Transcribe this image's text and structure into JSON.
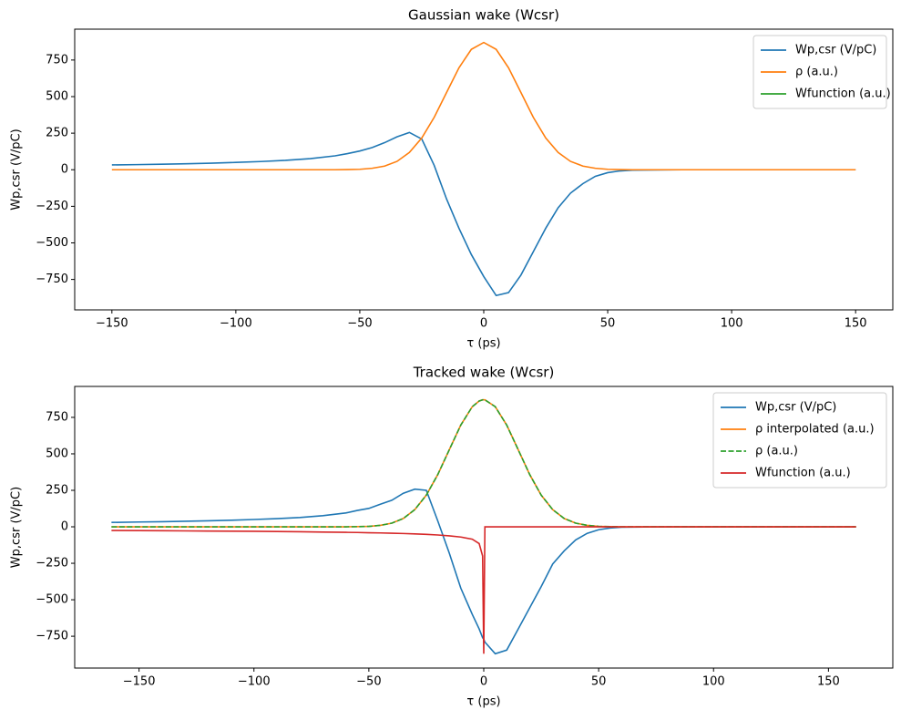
{
  "chart_data": [
    {
      "type": "line",
      "title": "Gaussian wake (Wcsr)",
      "xlabel": "τ (ps)",
      "ylabel": "Wp,csr (V/pC)",
      "x": [
        -150,
        -140,
        -130,
        -120,
        -110,
        -100,
        -90,
        -80,
        -70,
        -60,
        -55,
        -50,
        -45,
        -40,
        -35,
        -30,
        -25,
        -20,
        -15,
        -10,
        -5,
        0,
        5,
        10,
        15,
        20,
        25,
        30,
        35,
        40,
        45,
        50,
        55,
        60,
        70,
        80,
        90,
        100,
        110,
        120,
        130,
        140,
        150
      ],
      "series": [
        {
          "name": "Wp,csr (V/pC)",
          "color": "#1f77b4",
          "values": [
            33,
            35,
            38,
            41,
            45,
            50,
            56,
            64,
            76,
            95,
            110,
            128,
            152,
            185,
            225,
            255,
            210,
            30,
            -200,
            -400,
            -580,
            -730,
            -860,
            -840,
            -720,
            -560,
            -400,
            -260,
            -160,
            -95,
            -45,
            -20,
            -8,
            -3,
            -1,
            0,
            0,
            0,
            0,
            0,
            0,
            0,
            0
          ]
        },
        {
          "name": "ρ (a.u.)",
          "color": "#ff7f0e",
          "values": [
            0,
            0,
            0,
            0,
            0,
            0,
            0,
            0,
            0,
            0,
            1,
            3,
            10,
            25,
            57,
            118,
            217,
            358,
            528,
            697,
            823,
            870,
            823,
            697,
            528,
            358,
            217,
            118,
            57,
            25,
            10,
            3,
            1,
            0,
            0,
            0,
            0,
            0,
            0,
            0,
            0,
            0,
            0
          ]
        },
        {
          "name": "Wfunction (a.u.)",
          "color": "#2ca02c",
          "values": [
            null,
            null,
            null,
            null,
            null,
            null,
            null,
            null,
            null,
            null,
            null,
            null,
            null,
            null,
            null,
            null,
            null,
            null,
            null,
            null,
            null,
            null,
            null,
            null,
            null,
            null,
            null,
            null,
            null,
            null,
            null,
            null,
            null,
            null,
            null,
            null,
            null,
            null,
            null,
            null,
            null,
            null,
            null
          ]
        }
      ],
      "xlim": [
        -165,
        165
      ],
      "ylim": [
        -958,
        961
      ],
      "xticks": [
        {
          "value": -150,
          "label": "−150"
        },
        {
          "value": -100,
          "label": "−100"
        },
        {
          "value": -50,
          "label": "−50"
        },
        0,
        50,
        100,
        150
      ],
      "yticks": [
        {
          "value": -750,
          "label": "−750"
        },
        {
          "value": -500,
          "label": "−500"
        },
        {
          "value": -250,
          "label": "−250"
        },
        0,
        250,
        500,
        750
      ],
      "legend": "upper right"
    },
    {
      "type": "line",
      "title": "Tracked wake (Wcsr)",
      "xlabel": "τ (ps)",
      "ylabel": "Wp,csr (V/pC)",
      "x": [
        -162,
        -150,
        -140,
        -130,
        -120,
        -110,
        -100,
        -90,
        -80,
        -70,
        -60,
        -55,
        -50,
        -45,
        -40,
        -35,
        -30,
        -25,
        -20,
        -15,
        -10,
        -5,
        -2,
        -0.5,
        0,
        0.5,
        5,
        10,
        15,
        20,
        25,
        30,
        35,
        40,
        45,
        50,
        55,
        60,
        70,
        80,
        90,
        100,
        110,
        120,
        130,
        140,
        150,
        162
      ],
      "series": [
        {
          "name": "Wp,csr (V/pC)",
          "color": "#1f77b4",
          "values": [
            30,
            33,
            35,
            38,
            41,
            45,
            50,
            56,
            64,
            76,
            95,
            112,
            126,
            155,
            182,
            230,
            258,
            250,
            40,
            -180,
            -420,
            -600,
            -700,
            -760,
            -770,
            -790,
            -870,
            -845,
            -700,
            -555,
            -410,
            -255,
            -165,
            -90,
            -45,
            -20,
            -8,
            -3,
            -1,
            0,
            0,
            0,
            0,
            0,
            0,
            0,
            0,
            0
          ]
        },
        {
          "name": "ρ interpolated (a.u.)",
          "color": "#ff7f0e",
          "values": [
            0,
            0,
            0,
            0,
            0,
            0,
            0,
            0,
            0,
            0,
            0,
            1,
            3,
            10,
            25,
            57,
            118,
            217,
            358,
            528,
            697,
            823,
            862,
            870,
            870,
            870,
            823,
            697,
            528,
            358,
            217,
            118,
            57,
            25,
            10,
            3,
            1,
            0,
            0,
            0,
            0,
            0,
            0,
            0,
            0,
            0,
            0,
            0
          ]
        },
        {
          "name": "ρ (a.u.)",
          "color": "#2ca02c",
          "linestyle": "dashed",
          "values": [
            0,
            0,
            0,
            0,
            0,
            0,
            0,
            0,
            0,
            0,
            0,
            1,
            3,
            10,
            25,
            57,
            118,
            217,
            358,
            528,
            697,
            823,
            862,
            870,
            870,
            870,
            823,
            697,
            528,
            358,
            217,
            118,
            57,
            25,
            10,
            3,
            1,
            0,
            0,
            0,
            0,
            0,
            0,
            0,
            0,
            0,
            0,
            0
          ]
        },
        {
          "name": "Wfunction (a.u.)",
          "color": "#d62728",
          "values": [
            -25,
            -26,
            -27,
            -28,
            -29,
            -30,
            -31,
            -32,
            -34,
            -36,
            -38,
            -39,
            -41,
            -42,
            -44,
            -46,
            -49,
            -52,
            -56,
            -62,
            -70,
            -85,
            -115,
            -200,
            -870,
            0,
            0,
            0,
            0,
            0,
            0,
            0,
            0,
            0,
            0,
            0,
            0,
            0,
            0,
            0,
            0,
            0,
            0,
            0,
            0,
            0,
            0,
            0
          ]
        }
      ],
      "xlim": [
        -178,
        178
      ],
      "ylim": [
        -968,
        962
      ],
      "xticks": [
        {
          "value": -150,
          "label": "−150"
        },
        {
          "value": -100,
          "label": "−100"
        },
        {
          "value": -50,
          "label": "−50"
        },
        0,
        50,
        100,
        150
      ],
      "yticks": [
        {
          "value": -750,
          "label": "−750"
        },
        {
          "value": -500,
          "label": "−500"
        },
        {
          "value": -250,
          "label": "−250"
        },
        0,
        250,
        500,
        750
      ],
      "legend": "upper right"
    }
  ]
}
